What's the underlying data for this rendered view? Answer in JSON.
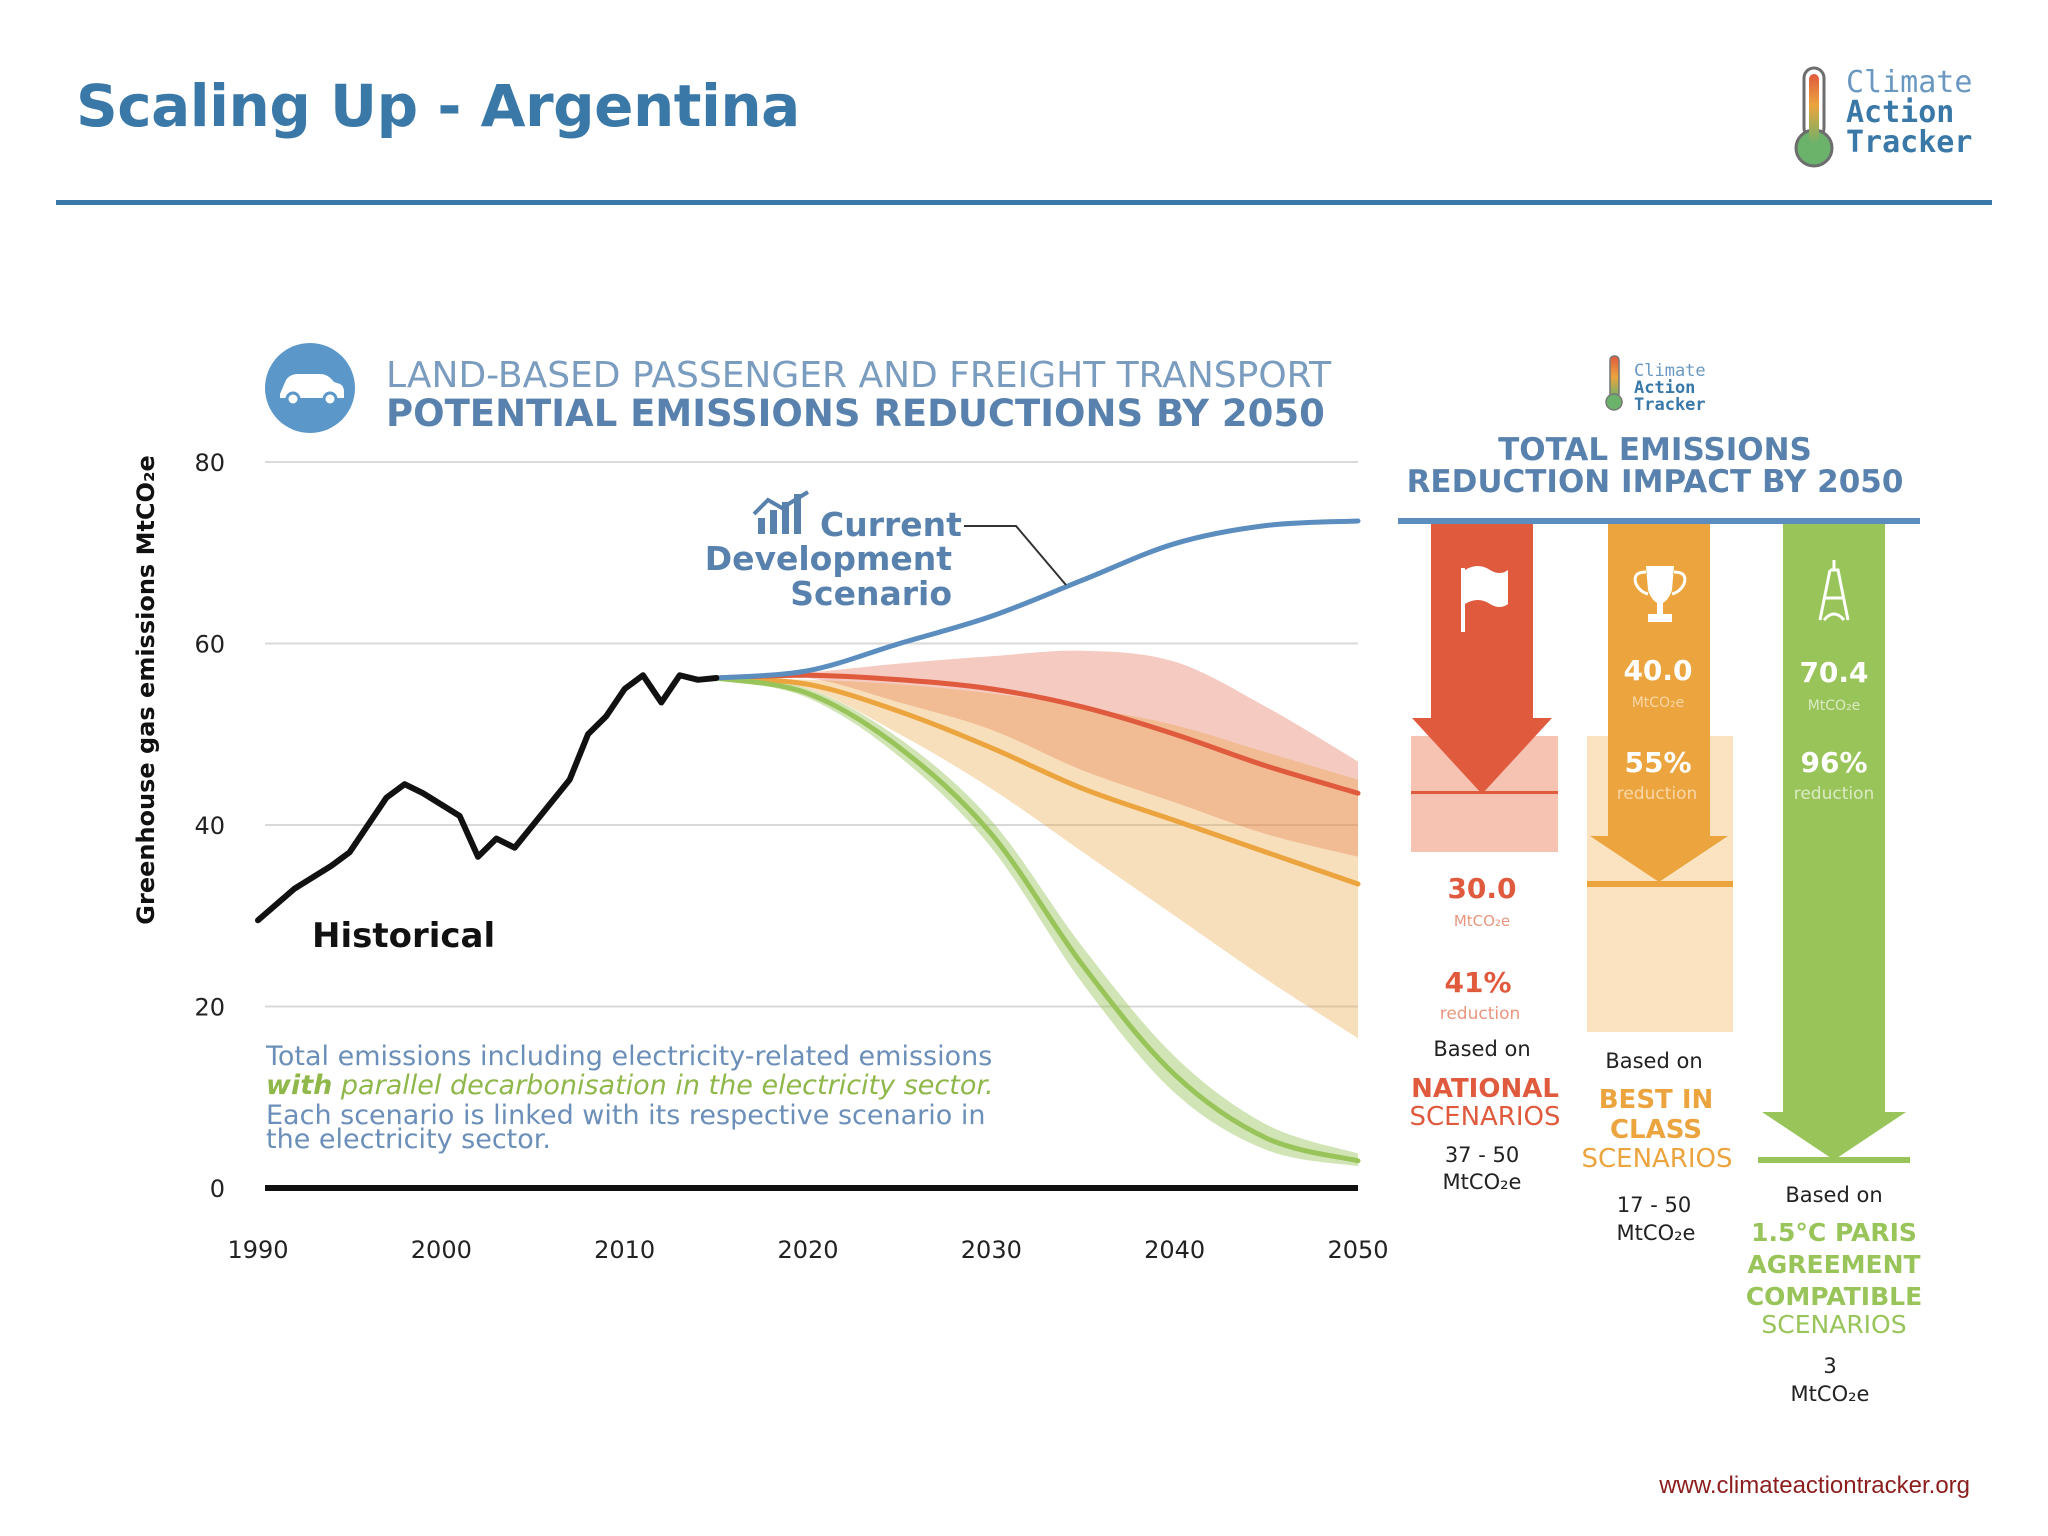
{
  "slide": {
    "title": "Scaling Up - Argentina",
    "url": "www.climateactiontracker.org",
    "logo_lines": [
      "Climate",
      "Action",
      "Tracker"
    ]
  },
  "colors": {
    "title_blue": "#3a78a8",
    "historical": "#111111",
    "current_development": "#5b8dbf",
    "national": "#e05a3e",
    "best_in_class": "#eba43e",
    "paris": "#98c45a",
    "grid": "#d9d9d9",
    "note_blue": "#6b8fb8",
    "note_green": "#8fb74a"
  },
  "chart_data": {
    "type": "line",
    "title": "LAND-BASED PASSENGER AND FREIGHT TRANSPORT",
    "subtitle": "POTENTIAL EMISSIONS REDUCTIONS BY 2050",
    "ylabel": "Greenhouse gas emissions MtCO₂e",
    "xlim": [
      1990,
      2050
    ],
    "ylim": [
      0,
      80
    ],
    "x_ticks": [
      1990,
      2000,
      2010,
      2020,
      2030,
      2040,
      2050
    ],
    "y_ticks": [
      0,
      20,
      40,
      60,
      80
    ],
    "grid": true,
    "series": [
      {
        "name": "Historical",
        "key": "historical",
        "x": [
          1990,
          1992,
          1994,
          1995,
          1997,
          1998,
          1999,
          2001,
          2002,
          2003,
          2004,
          2005,
          2007,
          2008,
          2009,
          2010,
          2011,
          2012,
          2013,
          2014,
          2015
        ],
        "y": [
          29.5,
          33,
          35.5,
          37,
          43,
          44.5,
          43.5,
          41,
          36.5,
          38.5,
          37.5,
          40,
          45,
          50,
          52,
          55,
          56.5,
          53.5,
          56.5,
          56,
          56.2
        ]
      },
      {
        "name": "Current Development Scenario",
        "key": "current_development",
        "x": [
          2015,
          2020,
          2025,
          2030,
          2035,
          2040,
          2045,
          2050
        ],
        "y": [
          56.2,
          57,
          60,
          63,
          67,
          71,
          73,
          73.5
        ]
      },
      {
        "name": "National scenarios",
        "key": "national",
        "x": [
          2015,
          2020,
          2025,
          2030,
          2035,
          2040,
          2045,
          2050
        ],
        "y": [
          56.2,
          56.5,
          56,
          55,
          53,
          50,
          46.5,
          43.5
        ],
        "band_high": [
          56.2,
          56.8,
          57.8,
          58.6,
          59.2,
          58,
          53,
          47
        ],
        "band_low": [
          56.2,
          56.2,
          53.5,
          50.5,
          46,
          42.5,
          39,
          36.5
        ]
      },
      {
        "name": "Best in class scenarios",
        "key": "best_in_class",
        "x": [
          2015,
          2020,
          2025,
          2030,
          2035,
          2040,
          2045,
          2050
        ],
        "y": [
          56.2,
          55.5,
          52.5,
          48.5,
          44,
          40.5,
          37,
          33.5
        ],
        "band_high": [
          56.2,
          56,
          55.5,
          54.5,
          53,
          51,
          48,
          45
        ],
        "band_low": [
          56.2,
          55,
          50,
          44,
          37,
          30,
          23,
          16.5
        ]
      },
      {
        "name": "1.5°C Paris Agreement compatible scenarios",
        "key": "paris",
        "x": [
          2015,
          2020,
          2025,
          2030,
          2035,
          2040,
          2045,
          2050
        ],
        "y": [
          56.2,
          54.5,
          48.5,
          39,
          24.5,
          12.5,
          5.5,
          3
        ],
        "band_high": [
          56.2,
          55,
          49.5,
          40.5,
          26.5,
          14.5,
          7,
          3.8
        ],
        "band_low": [
          56.2,
          54,
          47.5,
          37.5,
          22.5,
          10.5,
          4.2,
          2.4
        ]
      }
    ],
    "annotations": {
      "historical_label": "Historical",
      "current_label": [
        "Current",
        "Development",
        "Scenario"
      ],
      "note_line1": "Total emissions including electricity-related emissions",
      "note_line2_bold": "with",
      "note_line2_rest": " parallel decarbonisation in the electricity sector.",
      "note_line3": "Each scenario is linked with its respective scenario in",
      "note_line4": "the electricity sector."
    },
    "impact": {
      "heading": [
        "TOTAL EMISSIONS",
        "REDUCTION IMPACT BY 2050"
      ],
      "logo_lines": [
        "Climate",
        "Action",
        "Tracker"
      ],
      "columns": [
        {
          "key": "national",
          "icon": "flag-icon",
          "value": "30.0",
          "unit": "MtCO₂e",
          "percent": "41%",
          "percent_label": "reduction",
          "based_on": "Based on",
          "scenario": [
            "NATIONAL",
            "SCENARIOS"
          ],
          "range": [
            "37 - 50",
            "MtCO₂e"
          ]
        },
        {
          "key": "best_in_class",
          "icon": "trophy-icon",
          "value": "40.0",
          "unit": "MtCO₂e",
          "percent": "55%",
          "percent_label": "reduction",
          "based_on": "Based on",
          "scenario": [
            "BEST IN",
            "CLASS",
            "SCENARIOS"
          ],
          "range": [
            "17 - 50",
            "MtCO₂e"
          ]
        },
        {
          "key": "paris",
          "icon": "eiffel-tower-icon",
          "value": "70.4",
          "unit": "MtCO₂e",
          "percent": "96%",
          "percent_label": "reduction",
          "based_on": "Based on",
          "scenario": [
            "1.5°C PARIS",
            "AGREEMENT",
            "COMPATIBLE",
            "SCENARIOS"
          ],
          "range": [
            "3",
            "MtCO₂e"
          ]
        }
      ]
    }
  }
}
